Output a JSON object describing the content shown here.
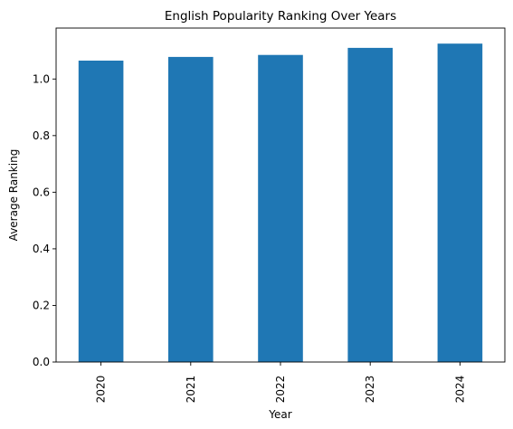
{
  "chart_data": {
    "type": "bar",
    "title": "English Popularity Ranking Over Years",
    "xlabel": "Year",
    "ylabel": "Average Ranking",
    "categories": [
      "2020",
      "2021",
      "2022",
      "2023",
      "2024"
    ],
    "values": [
      1.065,
      1.078,
      1.085,
      1.11,
      1.125
    ],
    "ylim": [
      0,
      1.18
    ],
    "yticks": [
      0.0,
      0.2,
      0.4,
      0.6,
      0.8,
      1.0
    ],
    "ytick_labels": [
      "0.0",
      "0.2",
      "0.4",
      "0.6",
      "0.8",
      "1.0"
    ],
    "bar_color": "#1f77b4",
    "grid": false,
    "legend": "none"
  }
}
